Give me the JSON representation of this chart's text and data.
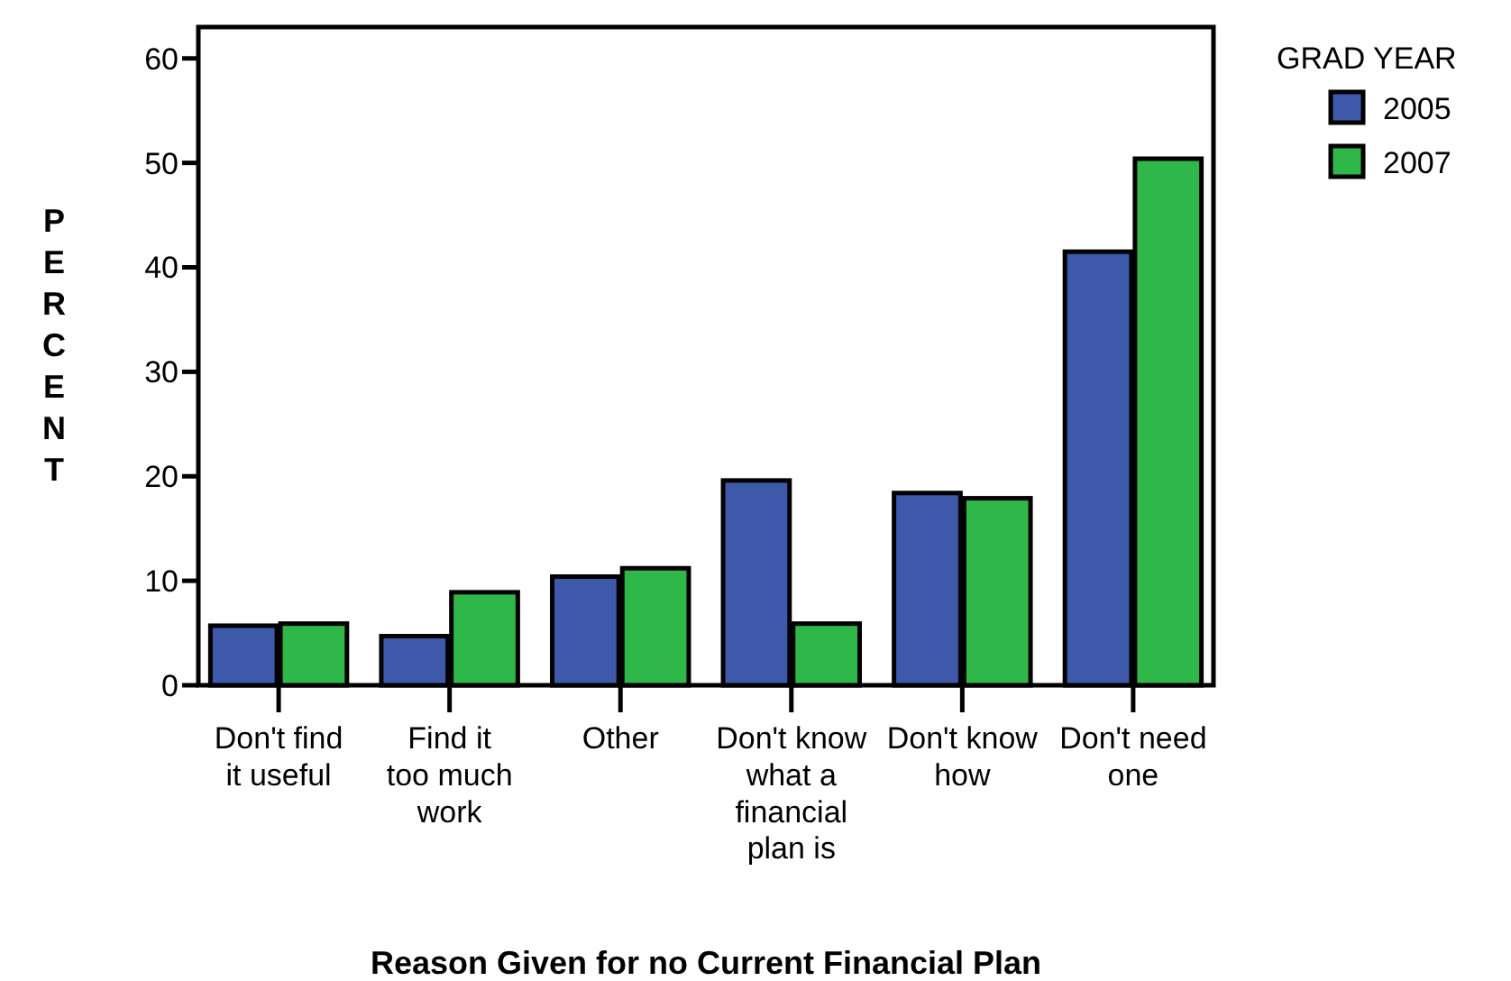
{
  "chart_data": {
    "type": "bar",
    "xlabel": "Reason Given for no Current Financial Plan",
    "ylabel": "PERCENT",
    "legend_title": "GRAD YEAR",
    "categories": [
      "Don't find it useful",
      "Find it too much work",
      "Other",
      "Don't know what a financial plan is",
      "Don't know how",
      "Don't need one"
    ],
    "series": [
      {
        "name": "2005",
        "color": "#3f59aa",
        "values": [
          5.7,
          4.7,
          10.4,
          19.6,
          18.4,
          41.5
        ]
      },
      {
        "name": "2007",
        "color": "#30b749",
        "values": [
          5.9,
          8.9,
          11.2,
          5.9,
          17.9,
          50.4
        ]
      }
    ],
    "ylim": [
      0,
      63
    ],
    "yticks": [
      0,
      10,
      20,
      30,
      40,
      50,
      60
    ],
    "legend": "top right",
    "grid": false
  }
}
